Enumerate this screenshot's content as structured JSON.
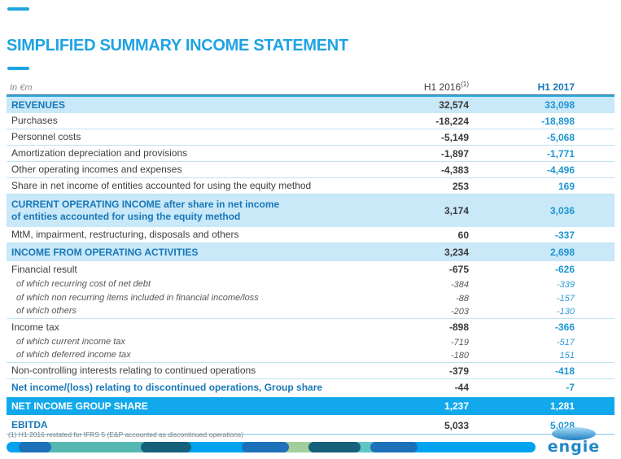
{
  "title": "SIMPLIFIED SUMMARY INCOME STATEMENT",
  "table": {
    "unit_label": "In €m",
    "col_2016": "H1 2016",
    "col_2016_sup": "(1)",
    "col_2017": "H1 2017",
    "rows": [
      {
        "label": "REVENUES",
        "v2016": "32,574",
        "v2017": "33,098",
        "style": "band"
      },
      {
        "label": "Purchases",
        "v2016": "-18,224",
        "v2017": "-18,898",
        "style": "plain"
      },
      {
        "label": "Personnel costs",
        "v2016": "-5,149",
        "v2017": "-5,068",
        "style": "plain"
      },
      {
        "label": "Amortization depreciation and provisions",
        "v2016": "-1,897",
        "v2017": "-1,771",
        "style": "plain"
      },
      {
        "label": "Other operating incomes and expenses",
        "v2016": "-4,383",
        "v2017": "-4,496",
        "style": "plain"
      },
      {
        "label": "Share in net income of entities accounted for using the equity method",
        "v2016": "253",
        "v2017": "169",
        "style": "plain"
      },
      {
        "label": "CURRENT OPERATING INCOME after share in net income",
        "label2": "of entities accounted for using the equity method",
        "v2016": "3,174",
        "v2017": "3,036",
        "style": "band2"
      },
      {
        "label": "MtM, impairment, restructuring, disposals and others",
        "v2016": "60",
        "v2017": "-337",
        "style": "plain"
      },
      {
        "label": "INCOME FROM OPERATING ACTIVITIES",
        "v2016": "3,234",
        "v2017": "2,698",
        "style": "band"
      },
      {
        "label": "Financial result",
        "v2016": "-675",
        "v2017": "-626",
        "style": "plain-nb"
      },
      {
        "label": "of which recurring cost of net debt",
        "v2016": "-384",
        "v2017": "-339",
        "style": "sub"
      },
      {
        "label": "of which non recurring items included in financial income/loss",
        "v2016": "-88",
        "v2017": "-157",
        "style": "sub"
      },
      {
        "label": "of which others",
        "v2016": "-203",
        "v2017": "-130",
        "style": "sub sub-end"
      },
      {
        "label": "Income tax",
        "v2016": "-898",
        "v2017": "-366",
        "style": "plain-nb"
      },
      {
        "label": "of which current income tax",
        "v2016": "-719",
        "v2017": "-517",
        "style": "sub"
      },
      {
        "label": "of which deferred income tax",
        "v2016": "-180",
        "v2017": "151",
        "style": "sub sub-end"
      },
      {
        "label": "Non-controlling interests relating to continued operations",
        "v2016": "-379",
        "v2017": "-418",
        "style": "plain"
      },
      {
        "label": "Net income/(loss) relating to discontinued operations, Group share",
        "v2016": "-44",
        "v2017": "-7",
        "style": "bluebold"
      },
      {
        "label": "NET INCOME GROUP SHARE",
        "v2016": "1,237",
        "v2017": "1,281",
        "style": "solid"
      },
      {
        "label": "EBITDA",
        "v2016": "5,033",
        "v2017": "5,028",
        "style": "ebitda"
      }
    ]
  },
  "footnote": "(1)   H1 2016 restated for IFRS 5 (E&P accounted as discontinued operations)",
  "logo": {
    "text": "engie",
    "brand_color": "#1E87C8"
  },
  "colors": {
    "accent_blue": "#1FA3E3",
    "band_background": "#C9E8F8",
    "solid_row_background": "#12A9EC",
    "label_blue": "#1878B8",
    "value_2017_blue": "#1E96D2",
    "bar_bright_blue": "#00A3F0",
    "bar_medium_blue": "#1D71B8",
    "bar_teal": "#55B7B1",
    "bar_dark_navy": "#16607C",
    "bar_light_green": "#A2CE9B",
    "bar_light_teal": "#5FC6C6"
  }
}
